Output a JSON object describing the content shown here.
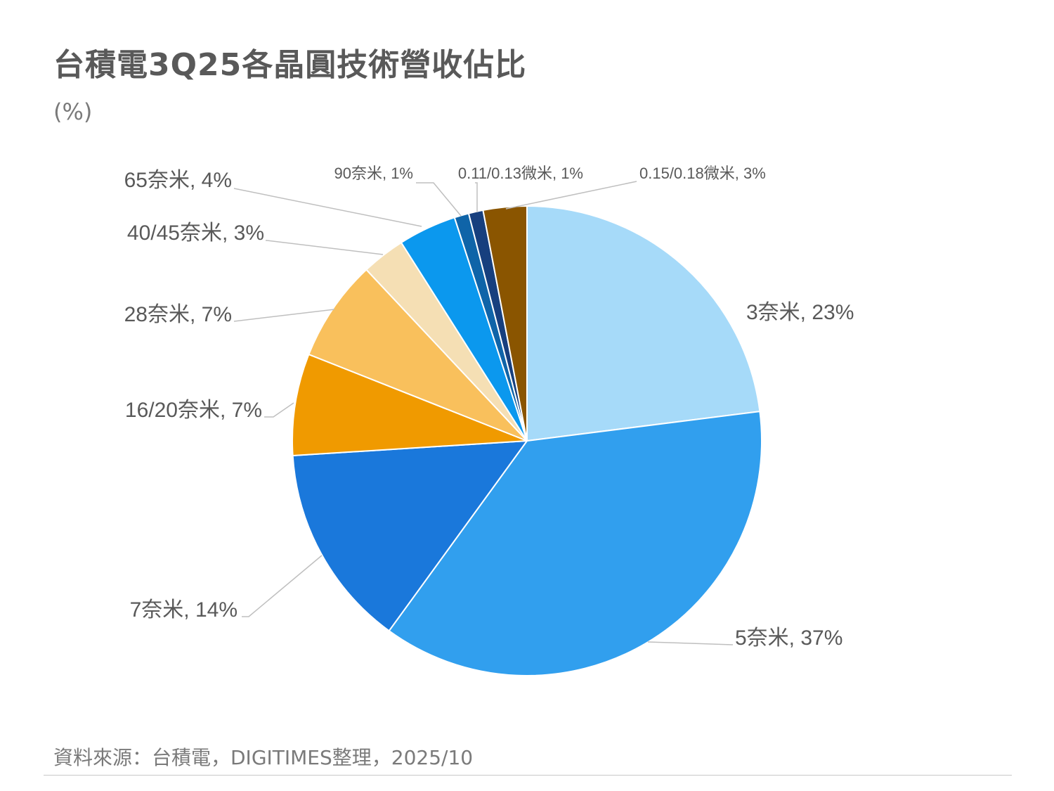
{
  "header": {
    "title": "台積電3Q25各晶圓技術營收佔比",
    "unit": "(%)"
  },
  "footer": {
    "source": "資料來源：台積電，DIGITIMES整理，2025/10"
  },
  "chart_data": {
    "type": "pie",
    "title": "台積電3Q25各晶圓技術營收佔比",
    "unit": "(%)",
    "start": "12 o'clock",
    "direction": "clockwise",
    "slices": [
      {
        "label": "3奈米",
        "value": 23,
        "display": "3奈米, 23%",
        "color": "#A6DAF9"
      },
      {
        "label": "5奈米",
        "value": 37,
        "display": "5奈米, 37%",
        "color": "#319FEE"
      },
      {
        "label": "7奈米",
        "value": 14,
        "display": "7奈米, 14%",
        "color": "#1A78DB"
      },
      {
        "label": "16/20奈米",
        "value": 7,
        "display": "16/20奈米, 7%",
        "color": "#F09A00"
      },
      {
        "label": "28奈米",
        "value": 7,
        "display": "28奈米, 7%",
        "color": "#F9C05C"
      },
      {
        "label": "40/45奈米",
        "value": 3,
        "display": "40/45奈米, 3%",
        "color": "#F5DFB4"
      },
      {
        "label": "65奈米",
        "value": 4,
        "display": "65奈米, 4%",
        "color": "#0B98EE"
      },
      {
        "label": "90奈米",
        "value": 1,
        "display": "90奈米, 1%",
        "color": "#0F64A8"
      },
      {
        "label": "0.11/0.13微米",
        "value": 1,
        "display": "0.11/0.13微米, 1%",
        "color": "#173F7E"
      },
      {
        "label": "0.15/0.18微米",
        "value": 3,
        "display": "0.15/0.18微米, 3%",
        "color": "#8A5500"
      }
    ]
  }
}
